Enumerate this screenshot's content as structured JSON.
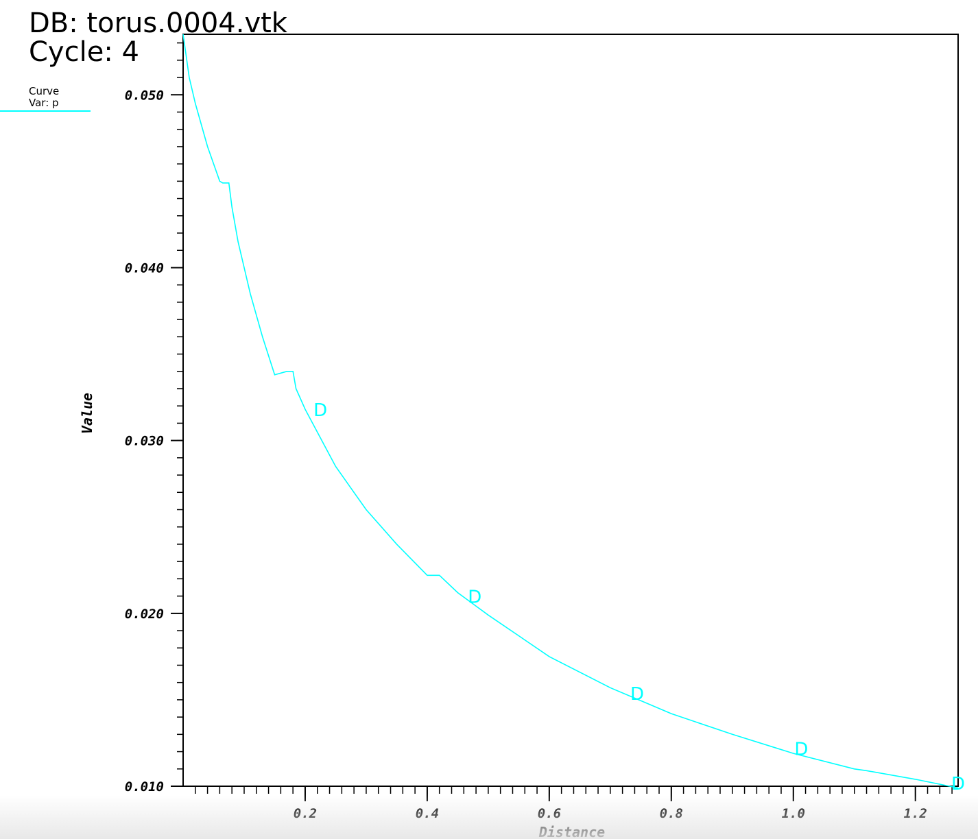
{
  "header": {
    "db_label": "DB: torus.0004.vtk",
    "cycle_label": "Cycle: 4"
  },
  "legend": {
    "line1": "Curve",
    "line2": "Var: p"
  },
  "colors": {
    "curve": "#00ffff",
    "axes": "#000000",
    "background": "#ffffff"
  },
  "chart_data": {
    "type": "line",
    "title": "",
    "xlabel": "Distance",
    "ylabel": "Value",
    "xlim": [
      0.0,
      1.27
    ],
    "ylim": [
      0.01,
      0.0535
    ],
    "x_ticks": [
      {
        "value": 0.2,
        "label": "0.2"
      },
      {
        "value": 0.4,
        "label": "0.4"
      },
      {
        "value": 0.6,
        "label": "0.6"
      },
      {
        "value": 0.8,
        "label": "0.8"
      },
      {
        "value": 1.0,
        "label": "1.0"
      },
      {
        "value": 1.2,
        "label": "1.2"
      }
    ],
    "x_minor_step": 0.02,
    "y_ticks": [
      {
        "value": 0.01,
        "label": "0.010"
      },
      {
        "value": 0.02,
        "label": "0.020"
      },
      {
        "value": 0.03,
        "label": "0.030"
      },
      {
        "value": 0.04,
        "label": "0.040"
      },
      {
        "value": 0.05,
        "label": "0.050"
      }
    ],
    "y_minor_step": 0.001,
    "grid": false,
    "legend_position": "top-left",
    "series": [
      {
        "name": "Curve",
        "color": "#00ffff",
        "x": [
          0.0,
          0.01,
          0.02,
          0.04,
          0.06,
          0.065,
          0.075,
          0.08,
          0.09,
          0.11,
          0.13,
          0.15,
          0.17,
          0.18,
          0.185,
          0.2,
          0.25,
          0.3,
          0.35,
          0.4,
          0.41,
          0.42,
          0.45,
          0.5,
          0.6,
          0.7,
          0.8,
          0.9,
          1.0,
          1.1,
          1.12,
          1.2,
          1.27
        ],
        "y": [
          0.0535,
          0.051,
          0.0495,
          0.047,
          0.045,
          0.0449,
          0.0449,
          0.0435,
          0.0415,
          0.0385,
          0.036,
          0.0338,
          0.034,
          0.034,
          0.033,
          0.0318,
          0.0285,
          0.026,
          0.024,
          0.0222,
          0.0222,
          0.0222,
          0.0212,
          0.0199,
          0.0175,
          0.0157,
          0.0142,
          0.013,
          0.0119,
          0.011,
          0.0109,
          0.0104,
          0.0099
        ]
      }
    ],
    "point_markers": [
      {
        "x": 0.225,
        "y": 0.0318,
        "label": "D"
      },
      {
        "x": 0.478,
        "y": 0.021,
        "label": "D"
      },
      {
        "x": 0.744,
        "y": 0.0154,
        "label": "D"
      },
      {
        "x": 1.013,
        "y": 0.0122,
        "label": "D"
      },
      {
        "x": 1.27,
        "y": 0.0102,
        "label": "D"
      }
    ]
  }
}
